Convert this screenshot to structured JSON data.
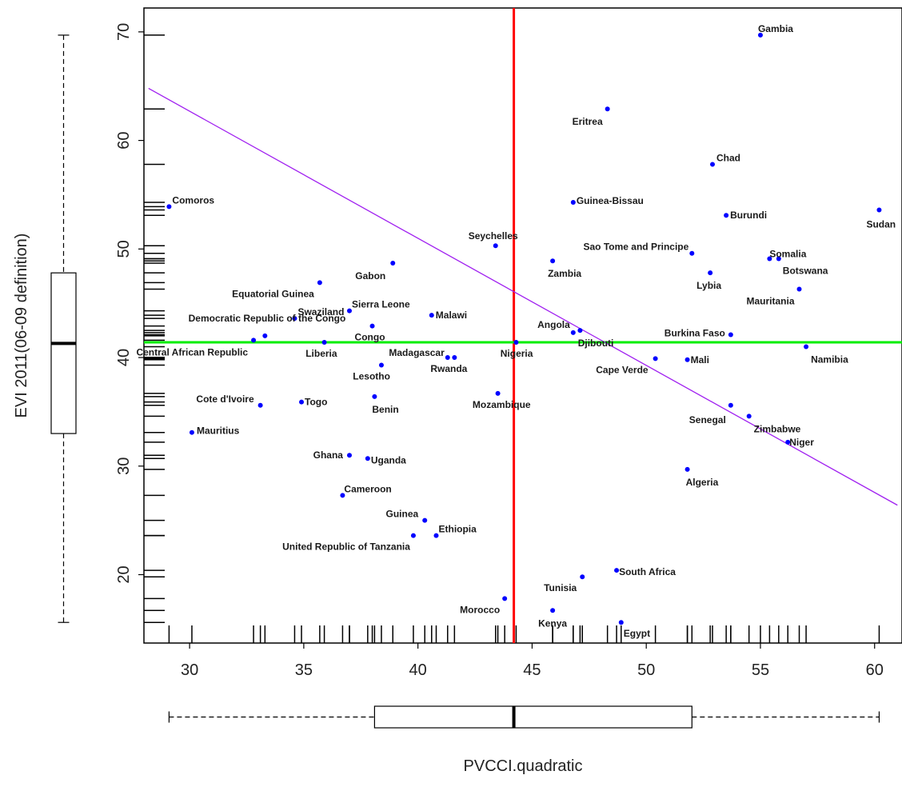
{
  "chart_data": {
    "type": "scatter",
    "title": "",
    "xlabel": "PVCCI.quadratic",
    "ylabel": "EVI 2011(06-09 definition)",
    "xlim": [
      28,
      61.2
    ],
    "ylim": [
      13.7,
      72.2
    ],
    "x_ticks": [
      30,
      35,
      40,
      45,
      50,
      55,
      60
    ],
    "y_ticks": [
      20,
      30,
      40,
      50,
      60,
      70
    ],
    "grid": false,
    "colors": {
      "points": "#0000ff",
      "vline": "#ff0000",
      "hline": "#00ee00",
      "regression": "#a020f0",
      "axis": "#000000"
    },
    "vline_x": 44.2,
    "hline_y": 41.4,
    "regression": {
      "x": [
        28.2,
        61.0
      ],
      "y": [
        64.8,
        26.4
      ]
    },
    "points": [
      {
        "name": "Gambia",
        "x": 55.0,
        "y": 69.7
      },
      {
        "name": "Eritrea",
        "x": 48.3,
        "y": 62.9
      },
      {
        "name": "Chad",
        "x": 52.9,
        "y": 57.8
      },
      {
        "name": "Comoros",
        "x": 29.1,
        "y": 53.9
      },
      {
        "name": "Guinea-Bissau",
        "x": 46.8,
        "y": 54.3
      },
      {
        "name": "Burundi",
        "x": 53.5,
        "y": 53.1
      },
      {
        "name": "Sudan",
        "x": 60.2,
        "y": 53.6
      },
      {
        "name": "Seychelles",
        "x": 43.4,
        "y": 50.3
      },
      {
        "name": "Sao Tome and Principe",
        "x": 52.0,
        "y": 49.6
      },
      {
        "name": "Somalia",
        "x": 55.4,
        "y": 49.1
      },
      {
        "name": "Botswana",
        "x": 55.8,
        "y": 49.1
      },
      {
        "name": "Zambia",
        "x": 45.9,
        "y": 48.9
      },
      {
        "name": "Gabon",
        "x": 38.9,
        "y": 48.7
      },
      {
        "name": "Lybia",
        "x": 52.8,
        "y": 47.8
      },
      {
        "name": "Equatorial Guinea",
        "x": 35.7,
        "y": 46.9
      },
      {
        "name": "Mauritania",
        "x": 56.7,
        "y": 46.3
      },
      {
        "name": "Sierra Leone",
        "x": 37.0,
        "y": 44.3
      },
      {
        "name": "Swaziland",
        "x": 34.6,
        "y": 43.6
      },
      {
        "name": "Malawi",
        "x": 40.6,
        "y": 43.9
      },
      {
        "name": "Democratic Republic of the Congo",
        "x": 33.3,
        "y": 42.0
      },
      {
        "name": "Congo",
        "x": 38.0,
        "y": 42.9
      },
      {
        "name": "Angola",
        "x": 46.8,
        "y": 42.3
      },
      {
        "name": "Djibouti",
        "x": 47.1,
        "y": 42.5
      },
      {
        "name": "Burkina Faso",
        "x": 53.7,
        "y": 42.1
      },
      {
        "name": "Central African Republic",
        "x": 32.8,
        "y": 41.6
      },
      {
        "name": "Liberia",
        "x": 35.9,
        "y": 41.4
      },
      {
        "name": "Nigeria",
        "x": 44.3,
        "y": 41.4
      },
      {
        "name": "Namibia",
        "x": 57.0,
        "y": 41.0
      },
      {
        "name": "Madagascar",
        "x": 41.3,
        "y": 40.0
      },
      {
        "name": "Rwanda",
        "x": 41.6,
        "y": 40.0
      },
      {
        "name": "Cape Verde",
        "x": 50.4,
        "y": 39.9
      },
      {
        "name": "Mali",
        "x": 51.8,
        "y": 39.8
      },
      {
        "name": "Lesotho",
        "x": 38.4,
        "y": 39.3
      },
      {
        "name": "Cote d'Ivoire",
        "x": 33.1,
        "y": 35.6
      },
      {
        "name": "Togo",
        "x": 34.9,
        "y": 35.9
      },
      {
        "name": "Benin",
        "x": 38.1,
        "y": 36.4
      },
      {
        "name": "Mozambique",
        "x": 43.5,
        "y": 36.7
      },
      {
        "name": "Senegal",
        "x": 53.7,
        "y": 35.6
      },
      {
        "name": "Zimbabwe",
        "x": 54.5,
        "y": 34.6
      },
      {
        "name": "Mauritius",
        "x": 30.1,
        "y": 33.1
      },
      {
        "name": "Niger",
        "x": 56.2,
        "y": 32.2
      },
      {
        "name": "Ghana",
        "x": 37.0,
        "y": 31.0
      },
      {
        "name": "Uganda",
        "x": 37.8,
        "y": 30.7
      },
      {
        "name": "Algeria",
        "x": 51.8,
        "y": 29.7
      },
      {
        "name": "Cameroon",
        "x": 36.7,
        "y": 27.3
      },
      {
        "name": "Guinea",
        "x": 40.3,
        "y": 25.0
      },
      {
        "name": "Ethiopia",
        "x": 40.8,
        "y": 23.6
      },
      {
        "name": "United Republic of Tanzania",
        "x": 39.8,
        "y": 23.6
      },
      {
        "name": "South Africa",
        "x": 48.7,
        "y": 20.4
      },
      {
        "name": "Tunisia",
        "x": 47.2,
        "y": 19.8
      },
      {
        "name": "Morocco",
        "x": 43.8,
        "y": 17.8
      },
      {
        "name": "Kenya",
        "x": 45.9,
        "y": 16.7
      },
      {
        "name": "Egypt",
        "x": 48.9,
        "y": 15.6
      }
    ],
    "x_boxplot": {
      "min": 29.1,
      "q1": 38.1,
      "median": 44.2,
      "q3": 52.0,
      "max": 60.2
    },
    "y_boxplot": {
      "min": 15.6,
      "q1": 33.0,
      "median": 41.3,
      "q3": 47.8,
      "max": 69.7
    }
  }
}
